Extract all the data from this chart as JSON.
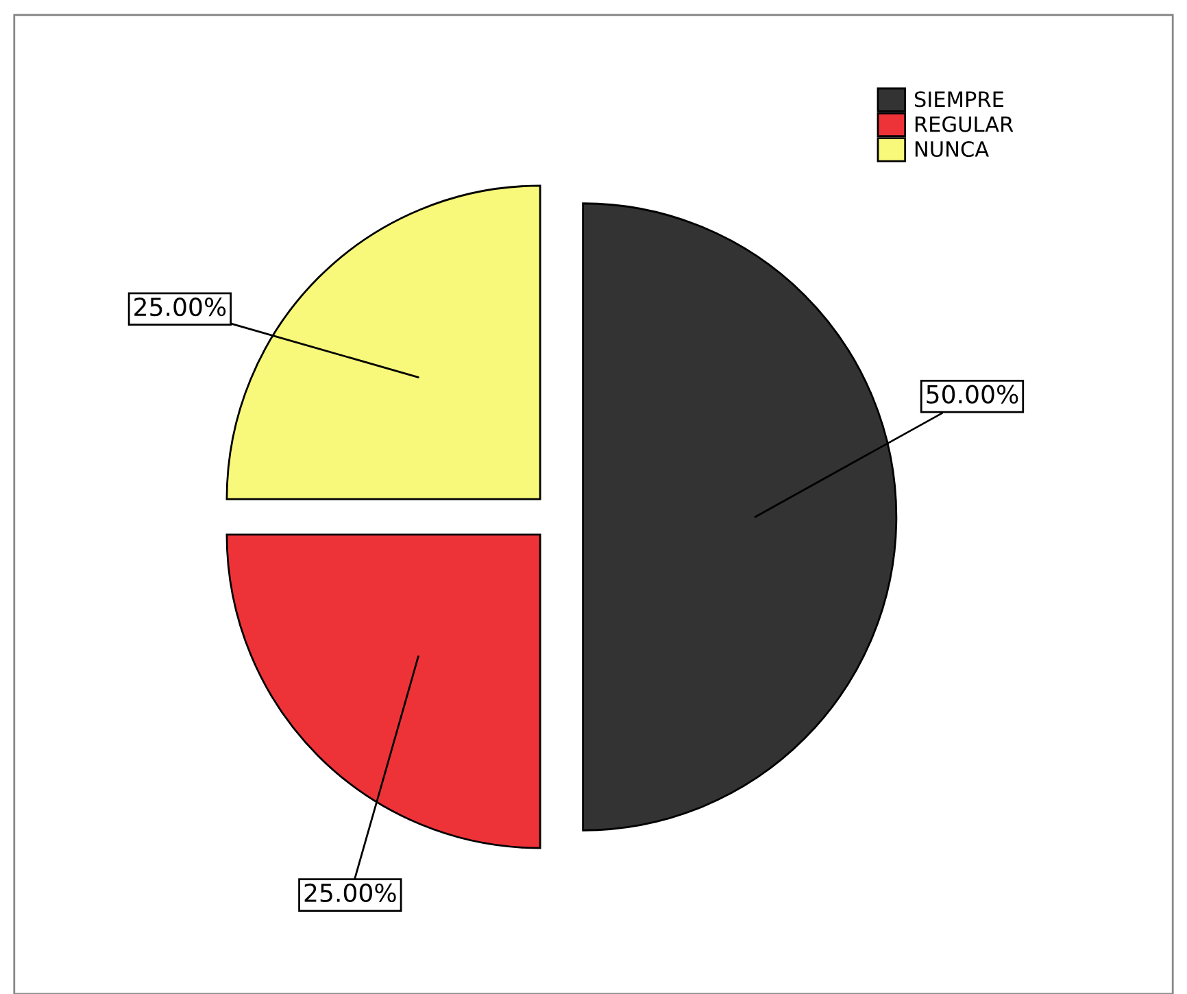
{
  "chart_data": {
    "type": "pie",
    "categories": [
      "SIEMPRE",
      "REGULAR",
      "NUNCA"
    ],
    "values": [
      50,
      25,
      25
    ],
    "colors": [
      "#333333",
      "#ee3338",
      "#f8f87a"
    ],
    "value_labels": [
      "50.00%",
      "25.00%",
      "25.00%"
    ],
    "legend": "top right"
  }
}
